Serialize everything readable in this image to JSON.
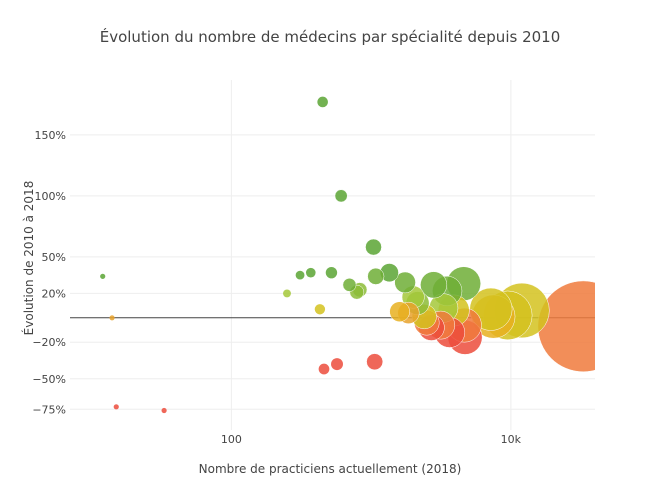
{
  "chart_data": {
    "type": "scatter",
    "title": "Évolution du nombre de médecins par spécialité depuis 2010",
    "xlabel": "Nombre de practiciens actuellement (2018)",
    "ylabel": "Évolution de 2010 à 2018",
    "x_scale": "log",
    "xlim": [
      7,
      40000
    ],
    "ylim": [
      -92,
      195
    ],
    "x_ticks": [
      {
        "value": 100,
        "label": "100"
      },
      {
        "value": 10000,
        "label": "10k"
      }
    ],
    "y_ticks": [
      {
        "value": 150,
        "label": "150%"
      },
      {
        "value": 100,
        "label": "100%"
      },
      {
        "value": 50,
        "label": "50%"
      },
      {
        "value": 20,
        "label": "20%"
      },
      {
        "value": -20,
        "label": "−20%"
      },
      {
        "value": -50,
        "label": "−50%"
      },
      {
        "value": -75,
        "label": "−75%"
      }
    ],
    "zero_line": 0,
    "bubble_sizing": "area proportional to number of practitioners",
    "points": [
      {
        "x": 12,
        "y": 34,
        "color": "#5aa534"
      },
      {
        "x": 14,
        "y": 0,
        "color": "#e8a22c"
      },
      {
        "x": 15,
        "y": -73,
        "color": "#ec4c3c"
      },
      {
        "x": 33,
        "y": -76,
        "color": "#ec4c3c"
      },
      {
        "x": 250,
        "y": 20,
        "color": "#a5c83a"
      },
      {
        "x": 310,
        "y": 35,
        "color": "#5aa534"
      },
      {
        "x": 370,
        "y": 37,
        "color": "#5aa534"
      },
      {
        "x": 430,
        "y": 7,
        "color": "#d4c21e"
      },
      {
        "x": 460,
        "y": -42,
        "color": "#ec4c3c"
      },
      {
        "x": 520,
        "y": 37,
        "color": "#5aa534"
      },
      {
        "x": 570,
        "y": -38,
        "color": "#ec4c3c"
      },
      {
        "x": 610,
        "y": 100,
        "color": "#5aa534"
      },
      {
        "x": 700,
        "y": 27,
        "color": "#6eae36"
      },
      {
        "x": 790,
        "y": 21,
        "color": "#8cbc37"
      },
      {
        "x": 830,
        "y": 23,
        "color": "#8cbc37"
      },
      {
        "x": 450,
        "y": 177,
        "color": "#5aa534"
      },
      {
        "x": 1040,
        "y": 58,
        "color": "#5aa534"
      },
      {
        "x": 1060,
        "y": -36,
        "color": "#ec4c3c"
      },
      {
        "x": 1080,
        "y": 34,
        "color": "#6eae36"
      },
      {
        "x": 1350,
        "y": 37,
        "color": "#5aa534"
      },
      {
        "x": 1600,
        "y": 5,
        "color": "#e8b020"
      },
      {
        "x": 1750,
        "y": 29,
        "color": "#6eae36"
      },
      {
        "x": 1850,
        "y": 4,
        "color": "#e8a22c"
      },
      {
        "x": 2000,
        "y": 17,
        "color": "#a5c83a"
      },
      {
        "x": 2150,
        "y": 12,
        "color": "#8cbc37"
      },
      {
        "x": 2400,
        "y": 1,
        "color": "#d4c21e"
      },
      {
        "x": 2500,
        "y": -4,
        "color": "#f07a3c"
      },
      {
        "x": 2700,
        "y": -8,
        "color": "#ec4c3c"
      },
      {
        "x": 2800,
        "y": 27,
        "color": "#6eae36"
      },
      {
        "x": 3150,
        "y": -6,
        "color": "#f07a3c"
      },
      {
        "x": 3300,
        "y": 8,
        "color": "#a5c83a"
      },
      {
        "x": 3500,
        "y": 22,
        "color": "#6eae36"
      },
      {
        "x": 3650,
        "y": -12,
        "color": "#ec4c3c"
      },
      {
        "x": 3900,
        "y": 6,
        "color": "#d4c21e"
      },
      {
        "x": 4600,
        "y": 28,
        "color": "#6eae36"
      },
      {
        "x": 4650,
        "y": -6,
        "color": "#f07a3c"
      },
      {
        "x": 4700,
        "y": -16,
        "color": "#ec4c3c"
      },
      {
        "x": 7200,
        "y": 7,
        "color": "#d4c21e"
      },
      {
        "x": 7500,
        "y": 1,
        "color": "#e8b020"
      },
      {
        "x": 9500,
        "y": 2,
        "color": "#d4c21e"
      },
      {
        "x": 12000,
        "y": 6,
        "color": "#d4c21e"
      },
      {
        "x": 33000,
        "y": -7,
        "color": "#f07a3c"
      }
    ]
  }
}
